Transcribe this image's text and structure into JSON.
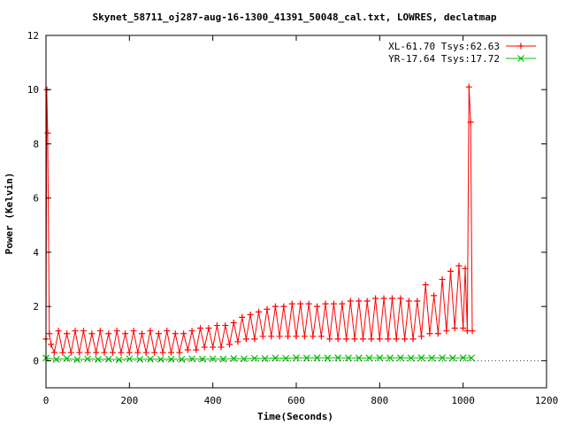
{
  "chart_data": {
    "type": "line",
    "title": "Skynet_58711_oj287-aug-16-1300_41391_50048_cal.txt, LOWRES, declatmap",
    "xlabel": "Time(Seconds)",
    "ylabel": "Power (Kelvin)",
    "xlim": [
      0,
      1200
    ],
    "ylim": [
      -1,
      12
    ],
    "xticks": [
      0,
      200,
      400,
      600,
      800,
      1000,
      1200
    ],
    "yticks": [
      0,
      2,
      4,
      6,
      8,
      10,
      12
    ],
    "grid": false,
    "legend_position": "top-right",
    "series": [
      {
        "name": "XL-61.70 Tsys:62.63",
        "color": "#ff0000",
        "marker": "plus",
        "x": [
          0,
          2,
          4,
          8,
          12,
          20,
          30,
          40,
          50,
          60,
          70,
          80,
          90,
          100,
          110,
          120,
          130,
          140,
          150,
          160,
          170,
          180,
          190,
          200,
          210,
          220,
          230,
          240,
          250,
          260,
          270,
          280,
          290,
          300,
          310,
          320,
          330,
          340,
          350,
          360,
          370,
          380,
          390,
          400,
          410,
          420,
          430,
          440,
          450,
          460,
          470,
          480,
          490,
          500,
          510,
          520,
          530,
          540,
          550,
          560,
          570,
          580,
          590,
          600,
          610,
          620,
          630,
          640,
          650,
          660,
          670,
          680,
          690,
          700,
          710,
          720,
          730,
          740,
          750,
          760,
          770,
          780,
          790,
          800,
          810,
          820,
          830,
          840,
          850,
          860,
          870,
          880,
          890,
          900,
          910,
          920,
          930,
          940,
          950,
          960,
          970,
          980,
          990,
          1000,
          1005,
          1010,
          1014,
          1018,
          1022
        ],
        "y": [
          0.8,
          10.0,
          8.4,
          1.0,
          0.6,
          0.3,
          1.1,
          0.3,
          1.0,
          0.3,
          1.1,
          0.3,
          1.1,
          0.3,
          1.0,
          0.3,
          1.1,
          0.3,
          1.0,
          0.3,
          1.1,
          0.3,
          1.0,
          0.3,
          1.1,
          0.3,
          1.0,
          0.3,
          1.1,
          0.3,
          1.0,
          0.3,
          1.1,
          0.3,
          1.0,
          0.3,
          1.0,
          0.4,
          1.1,
          0.4,
          1.2,
          0.5,
          1.2,
          0.5,
          1.3,
          0.5,
          1.3,
          0.6,
          1.4,
          0.7,
          1.6,
          0.8,
          1.7,
          0.8,
          1.8,
          0.9,
          1.9,
          0.9,
          2.0,
          0.9,
          2.0,
          0.9,
          2.1,
          0.9,
          2.1,
          0.9,
          2.1,
          0.9,
          2.0,
          0.9,
          2.1,
          0.8,
          2.1,
          0.8,
          2.1,
          0.8,
          2.2,
          0.8,
          2.2,
          0.8,
          2.2,
          0.8,
          2.3,
          0.8,
          2.3,
          0.8,
          2.3,
          0.8,
          2.3,
          0.8,
          2.2,
          0.8,
          2.2,
          0.9,
          2.8,
          1.0,
          2.4,
          1.0,
          3.0,
          1.1,
          3.3,
          1.2,
          3.5,
          1.2,
          3.4,
          1.1,
          10.1,
          8.8,
          1.1
        ]
      },
      {
        "name": "YR-17.64 Tsys:17.72",
        "color": "#00c000",
        "marker": "cross",
        "x": [
          0,
          25,
          50,
          75,
          100,
          125,
          150,
          175,
          200,
          225,
          250,
          275,
          300,
          325,
          350,
          375,
          400,
          425,
          450,
          475,
          500,
          525,
          550,
          575,
          600,
          625,
          650,
          675,
          700,
          725,
          750,
          775,
          800,
          825,
          850,
          875,
          900,
          925,
          950,
          975,
          1000,
          1020
        ],
        "y": [
          0.1,
          0.05,
          0.08,
          0.04,
          0.07,
          0.05,
          0.06,
          0.04,
          0.07,
          0.05,
          0.06,
          0.05,
          0.06,
          0.05,
          0.07,
          0.06,
          0.07,
          0.06,
          0.08,
          0.07,
          0.09,
          0.08,
          0.1,
          0.09,
          0.11,
          0.1,
          0.11,
          0.1,
          0.11,
          0.1,
          0.1,
          0.1,
          0.11,
          0.1,
          0.11,
          0.1,
          0.11,
          0.1,
          0.11,
          0.1,
          0.11,
          0.1
        ]
      }
    ]
  }
}
